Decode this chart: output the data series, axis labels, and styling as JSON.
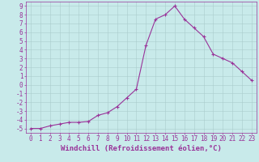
{
  "x": [
    0,
    1,
    2,
    3,
    4,
    5,
    6,
    7,
    8,
    9,
    10,
    11,
    12,
    13,
    14,
    15,
    16,
    17,
    18,
    19,
    20,
    21,
    22,
    23
  ],
  "y": [
    -5,
    -5,
    -4.7,
    -4.5,
    -4.3,
    -4.3,
    -4.2,
    -3.5,
    -3.2,
    -2.5,
    -1.5,
    -0.5,
    4.5,
    7.5,
    8.0,
    9.0,
    7.5,
    6.5,
    5.5,
    3.5,
    3.0,
    2.5,
    1.5,
    0.5
  ],
  "line_color": "#993399",
  "marker": "+",
  "marker_size": 3,
  "bg_color": "#c8eaea",
  "grid_color": "#aacccc",
  "xlabel": "Windchill (Refroidissement éolien,°C)",
  "xlim": [
    -0.5,
    23.5
  ],
  "ylim": [
    -5.5,
    9.5
  ],
  "xticks": [
    0,
    1,
    2,
    3,
    4,
    5,
    6,
    7,
    8,
    9,
    10,
    11,
    12,
    13,
    14,
    15,
    16,
    17,
    18,
    19,
    20,
    21,
    22,
    23
  ],
  "yticks": [
    -5,
    -4,
    -3,
    -2,
    -1,
    0,
    1,
    2,
    3,
    4,
    5,
    6,
    7,
    8,
    9
  ],
  "label_color": "#993399",
  "tick_color": "#993399",
  "axis_color": "#993399",
  "fontsize_xlabel": 6.5,
  "fontsize_tick": 5.5,
  "linewidth": 0.8,
  "markeredgewidth": 0.8
}
